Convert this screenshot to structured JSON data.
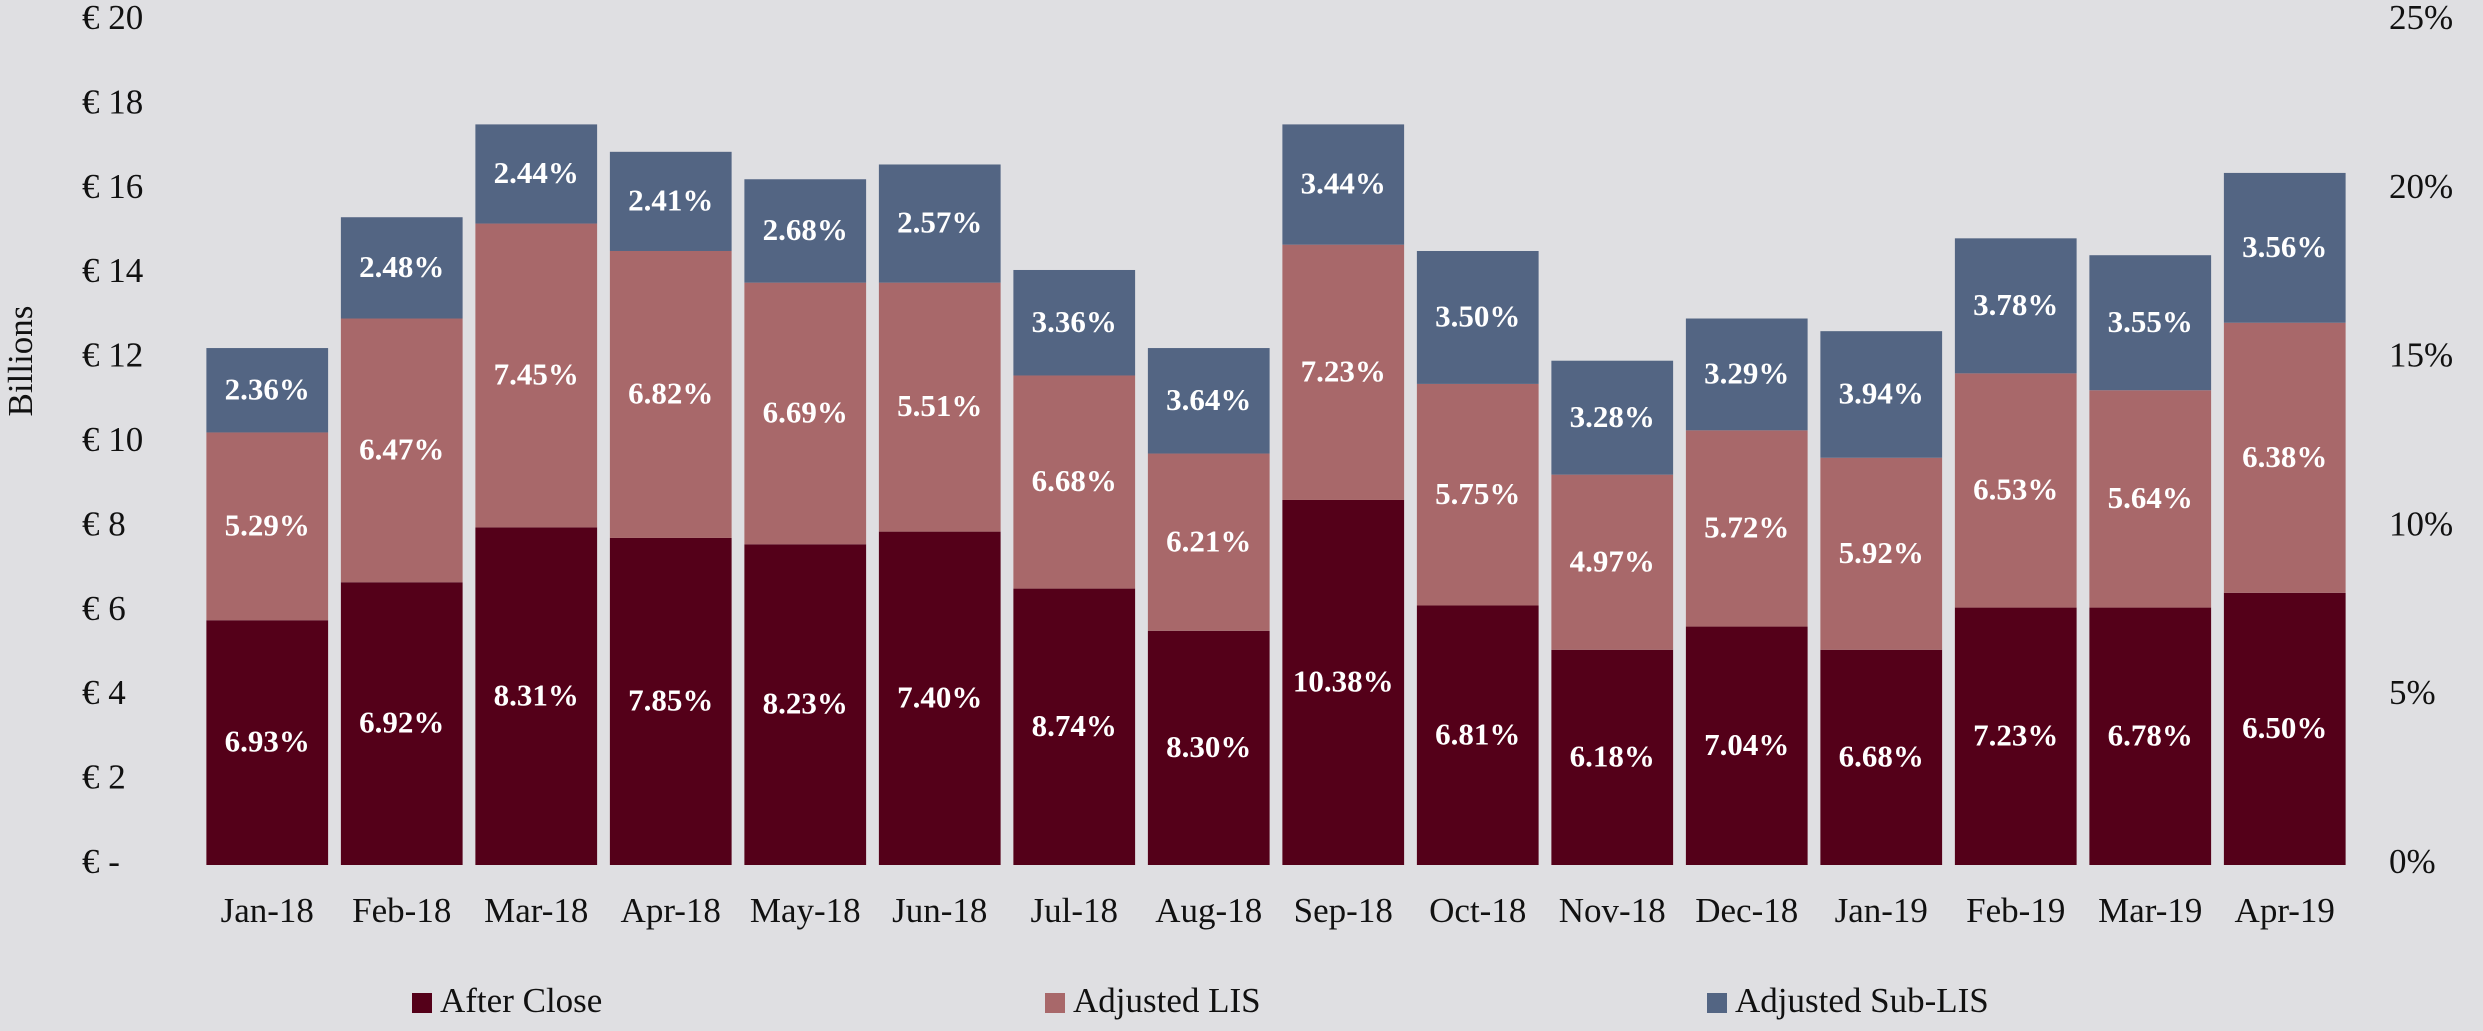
{
  "chart_data": {
    "type": "stacked_bar",
    "y_axis_label": "Billions",
    "categories": [
      "Jan-18",
      "Feb-18",
      "Mar-18",
      "Apr-18",
      "May-18",
      "Jun-18",
      "Jul-18",
      "Aug-18",
      "Sep-18",
      "Oct-18",
      "Nov-18",
      "Dec-18",
      "Jan-19",
      "Feb-19",
      "Mar-19",
      "Apr-19"
    ],
    "series": [
      {
        "name": "After Close",
        "color": "#540019",
        "values": [
          5.8,
          6.7,
          8.0,
          7.75,
          7.6,
          7.9,
          6.55,
          5.55,
          8.65,
          6.15,
          5.1,
          5.65,
          5.1,
          6.1,
          6.1,
          6.45
        ],
        "labels": [
          "6.93%",
          "6.92%",
          "8.31%",
          "7.85%",
          "8.23%",
          "7.40%",
          "8.74%",
          "8.30%",
          "10.38%",
          "6.81%",
          "6.18%",
          "7.04%",
          "6.68%",
          "7.23%",
          "6.78%",
          "6.50%"
        ]
      },
      {
        "name": "Adjusted LIS",
        "color": "#a8686a",
        "values": [
          4.45,
          6.25,
          7.2,
          6.8,
          6.2,
          5.9,
          5.05,
          4.2,
          6.05,
          5.25,
          4.15,
          4.65,
          4.55,
          5.55,
          5.15,
          6.4
        ],
        "labels": [
          "5.29%",
          "6.47%",
          "7.45%",
          "6.82%",
          "6.69%",
          "5.51%",
          "6.68%",
          "6.21%",
          "7.23%",
          "5.75%",
          "4.97%",
          "5.72%",
          "5.92%",
          "6.53%",
          "5.64%",
          "6.38%"
        ]
      },
      {
        "name": "Adjusted Sub-LIS",
        "color": "#536583",
        "values": [
          2.0,
          2.4,
          2.35,
          2.35,
          2.45,
          2.8,
          2.5,
          2.5,
          2.85,
          3.15,
          2.7,
          2.65,
          3.0,
          3.2,
          3.2,
          3.55
        ],
        "labels": [
          "2.36%",
          "2.48%",
          "2.44%",
          "2.41%",
          "2.68%",
          "2.57%",
          "3.36%",
          "3.64%",
          "3.44%",
          "3.50%",
          "3.28%",
          "3.29%",
          "3.94%",
          "3.78%",
          "3.55%",
          "3.56%"
        ]
      }
    ],
    "ylim": [
      0,
      20
    ],
    "yticks": [
      {
        "value": 0,
        "label": "€ -"
      },
      {
        "value": 2,
        "label": "€ 2"
      },
      {
        "value": 4,
        "label": "€ 4"
      },
      {
        "value": 6,
        "label": "€ 6"
      },
      {
        "value": 8,
        "label": "€ 8"
      },
      {
        "value": 10,
        "label": "€ 10"
      },
      {
        "value": 12,
        "label": "€ 12"
      },
      {
        "value": 14,
        "label": "€ 14"
      },
      {
        "value": 16,
        "label": "€ 16"
      },
      {
        "value": 18,
        "label": "€ 18"
      },
      {
        "value": 20,
        "label": "€ 20"
      }
    ],
    "y2lim": [
      0,
      25
    ],
    "y2ticks": [
      {
        "value": 0,
        "label": "0%"
      },
      {
        "value": 5,
        "label": "5%"
      },
      {
        "value": 10,
        "label": "10%"
      },
      {
        "value": 15,
        "label": "15%"
      },
      {
        "value": 20,
        "label": "20%"
      },
      {
        "value": 25,
        "label": "25%"
      }
    ],
    "legend": "bottom"
  }
}
